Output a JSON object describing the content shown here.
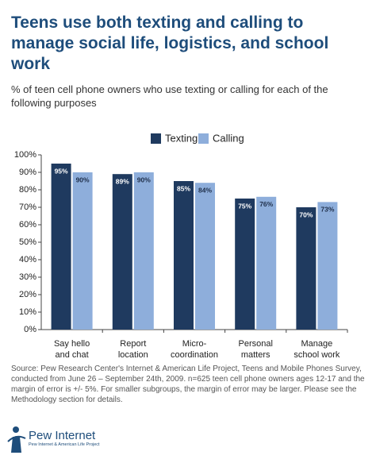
{
  "chart_data": {
    "type": "bar",
    "title": "Teens use both texting and calling to manage social life, logistics, and school work",
    "subtitle": "% of teen cell phone owners who use texting or calling for each of the following purposes",
    "categories": [
      "Say hello\nand chat",
      "Report\nlocation",
      "Micro-\ncoordination",
      "Personal\nmatters",
      "Manage\nschool work"
    ],
    "series": [
      {
        "name": "Texting",
        "color": "#1f3a5f",
        "values": [
          95,
          89,
          85,
          75,
          70
        ],
        "value_labels": [
          "95%",
          "89%",
          "85%",
          "75%",
          "70%"
        ]
      },
      {
        "name": "Calling",
        "color": "#8eaedb",
        "values": [
          90,
          90,
          84,
          76,
          73
        ],
        "value_labels": [
          "90%",
          "90%",
          "84%",
          "76%",
          "73%"
        ]
      }
    ],
    "ylim": [
      0,
      100
    ],
    "yticks": [
      {
        "value": 0,
        "label": "0%"
      },
      {
        "value": 10,
        "label": "10%"
      },
      {
        "value": 20,
        "label": "20%"
      },
      {
        "value": 30,
        "label": "30%"
      },
      {
        "value": 40,
        "label": "40%"
      },
      {
        "value": 50,
        "label": "50%"
      },
      {
        "value": 60,
        "label": "60%"
      },
      {
        "value": 70,
        "label": "70%"
      },
      {
        "value": 80,
        "label": "80%"
      },
      {
        "value": 90,
        "label": "90%"
      },
      {
        "value": 100,
        "label": "100%"
      }
    ],
    "grid": false,
    "source": "Source: Pew Research Center's Internet & American Life Project, Teens and Mobile Phones Survey, conducted from June 26 – September 24th, 2009. n=625 teen cell phone owners ages 12-17 and the margin of error is +/- 5%. For smaller subgroups, the margin of error may be larger. Please see the Methodology section for details.",
    "logo": "Pew Internet",
    "logo_subtitle": "Pew Internet & American Life Project"
  }
}
